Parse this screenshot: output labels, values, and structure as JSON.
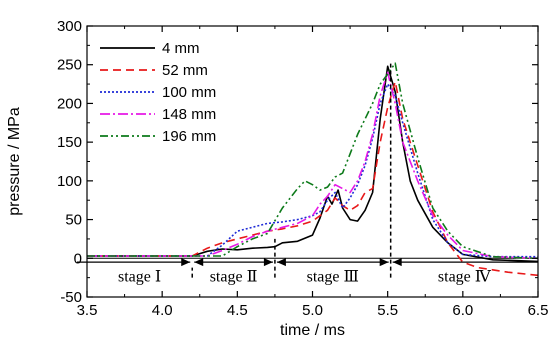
{
  "chart_data": {
    "type": "line",
    "xlabel": "time / ms",
    "ylabel": "pressure / MPa",
    "xlim": [
      3.5,
      6.5
    ],
    "ylim": [
      -50,
      300
    ],
    "xticks": [
      "3.5",
      "4.0",
      "4.5",
      "5.0",
      "5.5",
      "6.0",
      "6.5"
    ],
    "yticks": [
      "-50",
      "0",
      "50",
      "100",
      "150",
      "200",
      "250",
      "300"
    ],
    "grid": false,
    "legend_position": "top-left",
    "series": [
      {
        "name": "4 mm",
        "color": "#000000",
        "dash": "solid",
        "points": [
          [
            3.5,
            3
          ],
          [
            4.0,
            3
          ],
          [
            4.2,
            3
          ],
          [
            4.3,
            9
          ],
          [
            4.4,
            12
          ],
          [
            4.5,
            11
          ],
          [
            4.6,
            13
          ],
          [
            4.7,
            14
          ],
          [
            4.75,
            15
          ],
          [
            4.8,
            20
          ],
          [
            4.9,
            22
          ],
          [
            5.0,
            30
          ],
          [
            5.05,
            52
          ],
          [
            5.1,
            80
          ],
          [
            5.13,
            70
          ],
          [
            5.17,
            88
          ],
          [
            5.2,
            65
          ],
          [
            5.25,
            50
          ],
          [
            5.3,
            48
          ],
          [
            5.35,
            62
          ],
          [
            5.4,
            85
          ],
          [
            5.45,
            180
          ],
          [
            5.5,
            248
          ],
          [
            5.55,
            215
          ],
          [
            5.6,
            150
          ],
          [
            5.65,
            100
          ],
          [
            5.7,
            75
          ],
          [
            5.8,
            40
          ],
          [
            5.9,
            20
          ],
          [
            6.0,
            5
          ],
          [
            6.2,
            -2
          ],
          [
            6.5,
            -4
          ]
        ]
      },
      {
        "name": "52 mm",
        "color": "#e8191a",
        "dash": "8,5",
        "points": [
          [
            3.5,
            3
          ],
          [
            4.0,
            3
          ],
          [
            4.2,
            3
          ],
          [
            4.3,
            13
          ],
          [
            4.4,
            20
          ],
          [
            4.5,
            25
          ],
          [
            4.6,
            30
          ],
          [
            4.7,
            35
          ],
          [
            4.8,
            38
          ],
          [
            4.9,
            42
          ],
          [
            5.0,
            48
          ],
          [
            5.05,
            55
          ],
          [
            5.1,
            62
          ],
          [
            5.15,
            78
          ],
          [
            5.2,
            68
          ],
          [
            5.25,
            62
          ],
          [
            5.3,
            68
          ],
          [
            5.35,
            85
          ],
          [
            5.4,
            90
          ],
          [
            5.45,
            150
          ],
          [
            5.5,
            195
          ],
          [
            5.55,
            228
          ],
          [
            5.6,
            180
          ],
          [
            5.7,
            120
          ],
          [
            5.8,
            60
          ],
          [
            5.9,
            20
          ],
          [
            6.0,
            -5
          ],
          [
            6.1,
            -12
          ],
          [
            6.3,
            -18
          ],
          [
            6.5,
            -22
          ]
        ]
      },
      {
        "name": "100 mm",
        "color": "#1f2bd6",
        "dash": "2,2",
        "points": [
          [
            3.5,
            3
          ],
          [
            4.0,
            3
          ],
          [
            4.3,
            3
          ],
          [
            4.4,
            17
          ],
          [
            4.5,
            35
          ],
          [
            4.6,
            40
          ],
          [
            4.7,
            45
          ],
          [
            4.8,
            47
          ],
          [
            4.9,
            50
          ],
          [
            5.0,
            55
          ],
          [
            5.05,
            60
          ],
          [
            5.1,
            75
          ],
          [
            5.15,
            85
          ],
          [
            5.2,
            65
          ],
          [
            5.25,
            78
          ],
          [
            5.3,
            95
          ],
          [
            5.35,
            120
          ],
          [
            5.4,
            155
          ],
          [
            5.45,
            200
          ],
          [
            5.5,
            225
          ],
          [
            5.55,
            210
          ],
          [
            5.6,
            175
          ],
          [
            5.7,
            110
          ],
          [
            5.8,
            50
          ],
          [
            5.9,
            20
          ],
          [
            6.0,
            5
          ],
          [
            6.2,
            2
          ],
          [
            6.5,
            2
          ]
        ]
      },
      {
        "name": "148 mm",
        "color": "#e619e6",
        "dash": "10,3,2,3",
        "points": [
          [
            3.5,
            3
          ],
          [
            4.0,
            3
          ],
          [
            4.3,
            3
          ],
          [
            4.4,
            10
          ],
          [
            4.5,
            18
          ],
          [
            4.6,
            28
          ],
          [
            4.7,
            35
          ],
          [
            4.8,
            40
          ],
          [
            4.9,
            45
          ],
          [
            5.0,
            55
          ],
          [
            5.05,
            70
          ],
          [
            5.1,
            80
          ],
          [
            5.15,
            95
          ],
          [
            5.2,
            90
          ],
          [
            5.25,
            85
          ],
          [
            5.3,
            100
          ],
          [
            5.35,
            125
          ],
          [
            5.4,
            160
          ],
          [
            5.45,
            210
          ],
          [
            5.5,
            240
          ],
          [
            5.55,
            200
          ],
          [
            5.6,
            150
          ],
          [
            5.7,
            100
          ],
          [
            5.8,
            55
          ],
          [
            5.9,
            30
          ],
          [
            6.0,
            10
          ],
          [
            6.2,
            2
          ],
          [
            6.5,
            0
          ]
        ]
      },
      {
        "name": "196 mm",
        "color": "#0d7a1a",
        "dash": "8,3,2,3,2,3",
        "points": [
          [
            3.5,
            3
          ],
          [
            4.0,
            3
          ],
          [
            4.4,
            3
          ],
          [
            4.5,
            15
          ],
          [
            4.6,
            25
          ],
          [
            4.7,
            32
          ],
          [
            4.8,
            65
          ],
          [
            4.9,
            90
          ],
          [
            4.95,
            100
          ],
          [
            5.0,
            95
          ],
          [
            5.05,
            88
          ],
          [
            5.1,
            92
          ],
          [
            5.15,
            105
          ],
          [
            5.2,
            110
          ],
          [
            5.25,
            135
          ],
          [
            5.3,
            160
          ],
          [
            5.35,
            180
          ],
          [
            5.4,
            200
          ],
          [
            5.45,
            225
          ],
          [
            5.5,
            238
          ],
          [
            5.55,
            252
          ],
          [
            5.6,
            200
          ],
          [
            5.7,
            130
          ],
          [
            5.8,
            65
          ],
          [
            5.9,
            35
          ],
          [
            6.0,
            15
          ],
          [
            6.2,
            2
          ],
          [
            6.5,
            0
          ]
        ]
      }
    ],
    "stage_markers": [
      4.2,
      4.75,
      5.52
    ],
    "stages": [
      {
        "label": "stage Ⅰ",
        "from": 3.5,
        "to": 4.2
      },
      {
        "label": "stage Ⅱ",
        "from": 4.2,
        "to": 4.75
      },
      {
        "label": "stage Ⅲ",
        "from": 4.75,
        "to": 5.52
      },
      {
        "label": "stage Ⅳ",
        "from": 5.52,
        "to": 6.5
      }
    ]
  }
}
